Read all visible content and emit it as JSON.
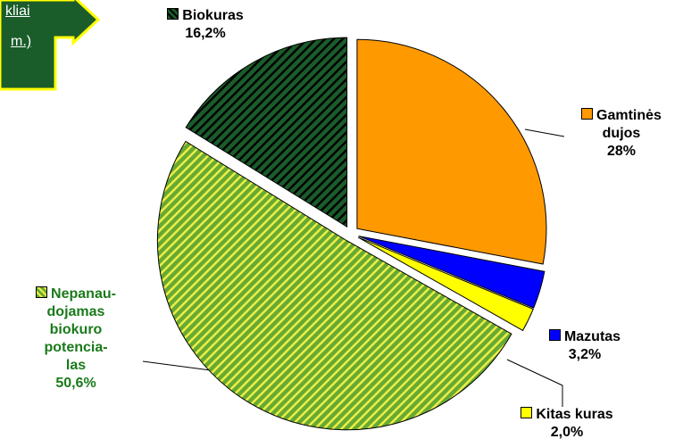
{
  "arrow_text": [
    "kliai",
    "m.)"
  ],
  "chart_data": {
    "type": "pie",
    "series": [
      {
        "name": "Gamtinės\ndujos",
        "color": "#ff9900",
        "values": [
          28
        ],
        "value_labels": [
          "28%"
        ]
      },
      {
        "name": "Mazutas",
        "color": "#0000ff",
        "values": [
          3.2
        ],
        "value_labels": [
          "3,2%"
        ]
      },
      {
        "name": "Kitas kuras",
        "color": "#ffff00",
        "values": [
          2.0
        ],
        "value_labels": [
          "2,0%"
        ]
      },
      {
        "name": "Nepanau-\ndojamas\nbiokuro\npotencia-\nlas",
        "color": "#66aa33",
        "hatch": "#eeee44",
        "values": [
          50.6
        ],
        "value_labels": [
          "50,6%"
        ]
      },
      {
        "name": "Biokuras",
        "color": "#1a5c2a",
        "hatch": "#000000",
        "values": [
          16.2
        ],
        "value_labels": [
          "16,2%"
        ]
      }
    ]
  }
}
